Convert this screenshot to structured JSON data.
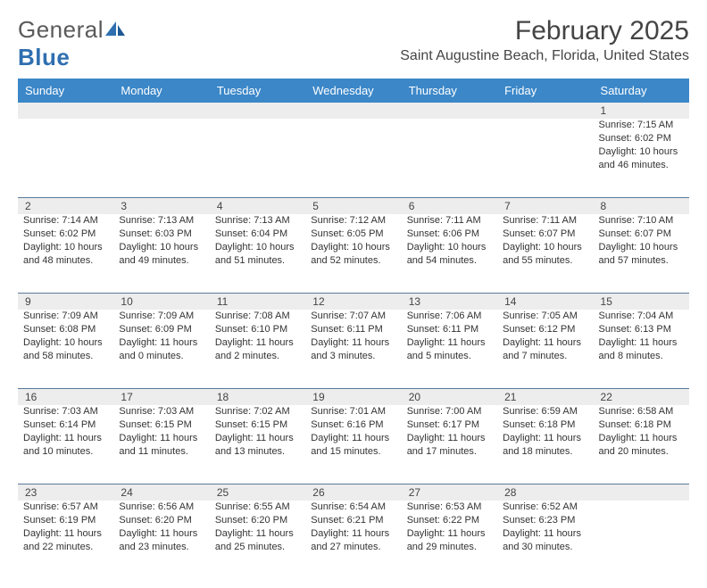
{
  "brand": {
    "name_a": "General",
    "name_b": "Blue"
  },
  "title": "February 2025",
  "location": "Saint Augustine Beach, Florida, United States",
  "colors": {
    "header_bg": "#3b87c8",
    "header_text": "#ffffff",
    "daynum_bg": "#ededed",
    "rule": "#5b7a9a",
    "brand_gray": "#5a5a5a",
    "brand_blue": "#2f6fb0"
  },
  "weekdays": [
    "Sunday",
    "Monday",
    "Tuesday",
    "Wednesday",
    "Thursday",
    "Friday",
    "Saturday"
  ],
  "weeks": [
    [
      null,
      null,
      null,
      null,
      null,
      null,
      {
        "n": "1",
        "sunrise": "Sunrise: 7:15 AM",
        "sunset": "Sunset: 6:02 PM",
        "day1": "Daylight: 10 hours",
        "day2": "and 46 minutes."
      }
    ],
    [
      {
        "n": "2",
        "sunrise": "Sunrise: 7:14 AM",
        "sunset": "Sunset: 6:02 PM",
        "day1": "Daylight: 10 hours",
        "day2": "and 48 minutes."
      },
      {
        "n": "3",
        "sunrise": "Sunrise: 7:13 AM",
        "sunset": "Sunset: 6:03 PM",
        "day1": "Daylight: 10 hours",
        "day2": "and 49 minutes."
      },
      {
        "n": "4",
        "sunrise": "Sunrise: 7:13 AM",
        "sunset": "Sunset: 6:04 PM",
        "day1": "Daylight: 10 hours",
        "day2": "and 51 minutes."
      },
      {
        "n": "5",
        "sunrise": "Sunrise: 7:12 AM",
        "sunset": "Sunset: 6:05 PM",
        "day1": "Daylight: 10 hours",
        "day2": "and 52 minutes."
      },
      {
        "n": "6",
        "sunrise": "Sunrise: 7:11 AM",
        "sunset": "Sunset: 6:06 PM",
        "day1": "Daylight: 10 hours",
        "day2": "and 54 minutes."
      },
      {
        "n": "7",
        "sunrise": "Sunrise: 7:11 AM",
        "sunset": "Sunset: 6:07 PM",
        "day1": "Daylight: 10 hours",
        "day2": "and 55 minutes."
      },
      {
        "n": "8",
        "sunrise": "Sunrise: 7:10 AM",
        "sunset": "Sunset: 6:07 PM",
        "day1": "Daylight: 10 hours",
        "day2": "and 57 minutes."
      }
    ],
    [
      {
        "n": "9",
        "sunrise": "Sunrise: 7:09 AM",
        "sunset": "Sunset: 6:08 PM",
        "day1": "Daylight: 10 hours",
        "day2": "and 58 minutes."
      },
      {
        "n": "10",
        "sunrise": "Sunrise: 7:09 AM",
        "sunset": "Sunset: 6:09 PM",
        "day1": "Daylight: 11 hours",
        "day2": "and 0 minutes."
      },
      {
        "n": "11",
        "sunrise": "Sunrise: 7:08 AM",
        "sunset": "Sunset: 6:10 PM",
        "day1": "Daylight: 11 hours",
        "day2": "and 2 minutes."
      },
      {
        "n": "12",
        "sunrise": "Sunrise: 7:07 AM",
        "sunset": "Sunset: 6:11 PM",
        "day1": "Daylight: 11 hours",
        "day2": "and 3 minutes."
      },
      {
        "n": "13",
        "sunrise": "Sunrise: 7:06 AM",
        "sunset": "Sunset: 6:11 PM",
        "day1": "Daylight: 11 hours",
        "day2": "and 5 minutes."
      },
      {
        "n": "14",
        "sunrise": "Sunrise: 7:05 AM",
        "sunset": "Sunset: 6:12 PM",
        "day1": "Daylight: 11 hours",
        "day2": "and 7 minutes."
      },
      {
        "n": "15",
        "sunrise": "Sunrise: 7:04 AM",
        "sunset": "Sunset: 6:13 PM",
        "day1": "Daylight: 11 hours",
        "day2": "and 8 minutes."
      }
    ],
    [
      {
        "n": "16",
        "sunrise": "Sunrise: 7:03 AM",
        "sunset": "Sunset: 6:14 PM",
        "day1": "Daylight: 11 hours",
        "day2": "and 10 minutes."
      },
      {
        "n": "17",
        "sunrise": "Sunrise: 7:03 AM",
        "sunset": "Sunset: 6:15 PM",
        "day1": "Daylight: 11 hours",
        "day2": "and 11 minutes."
      },
      {
        "n": "18",
        "sunrise": "Sunrise: 7:02 AM",
        "sunset": "Sunset: 6:15 PM",
        "day1": "Daylight: 11 hours",
        "day2": "and 13 minutes."
      },
      {
        "n": "19",
        "sunrise": "Sunrise: 7:01 AM",
        "sunset": "Sunset: 6:16 PM",
        "day1": "Daylight: 11 hours",
        "day2": "and 15 minutes."
      },
      {
        "n": "20",
        "sunrise": "Sunrise: 7:00 AM",
        "sunset": "Sunset: 6:17 PM",
        "day1": "Daylight: 11 hours",
        "day2": "and 17 minutes."
      },
      {
        "n": "21",
        "sunrise": "Sunrise: 6:59 AM",
        "sunset": "Sunset: 6:18 PM",
        "day1": "Daylight: 11 hours",
        "day2": "and 18 minutes."
      },
      {
        "n": "22",
        "sunrise": "Sunrise: 6:58 AM",
        "sunset": "Sunset: 6:18 PM",
        "day1": "Daylight: 11 hours",
        "day2": "and 20 minutes."
      }
    ],
    [
      {
        "n": "23",
        "sunrise": "Sunrise: 6:57 AM",
        "sunset": "Sunset: 6:19 PM",
        "day1": "Daylight: 11 hours",
        "day2": "and 22 minutes."
      },
      {
        "n": "24",
        "sunrise": "Sunrise: 6:56 AM",
        "sunset": "Sunset: 6:20 PM",
        "day1": "Daylight: 11 hours",
        "day2": "and 23 minutes."
      },
      {
        "n": "25",
        "sunrise": "Sunrise: 6:55 AM",
        "sunset": "Sunset: 6:20 PM",
        "day1": "Daylight: 11 hours",
        "day2": "and 25 minutes."
      },
      {
        "n": "26",
        "sunrise": "Sunrise: 6:54 AM",
        "sunset": "Sunset: 6:21 PM",
        "day1": "Daylight: 11 hours",
        "day2": "and 27 minutes."
      },
      {
        "n": "27",
        "sunrise": "Sunrise: 6:53 AM",
        "sunset": "Sunset: 6:22 PM",
        "day1": "Daylight: 11 hours",
        "day2": "and 29 minutes."
      },
      {
        "n": "28",
        "sunrise": "Sunrise: 6:52 AM",
        "sunset": "Sunset: 6:23 PM",
        "day1": "Daylight: 11 hours",
        "day2": "and 30 minutes."
      },
      null
    ]
  ]
}
